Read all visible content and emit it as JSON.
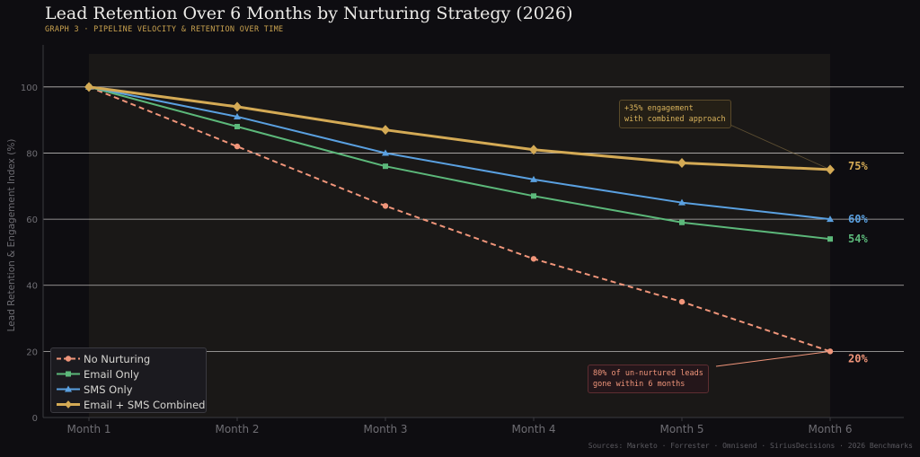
{
  "title": "Lead Retention Over 6 Months by Nurturing Strategy (2026)",
  "subtitle": "GRAPH 3  ·  PIPELINE VELOCITY & RETENTION OVER TIME",
  "sources": "Sources: Marketo · Forrester · Omnisend · SiriusDecisions · 2026 Benchmarks",
  "colors": {
    "background": "#0e0d11",
    "plot_area": "#1a1817",
    "grid": "#d8d6d3",
    "axis_text": "#6e6d73",
    "no_nurturing": "#f0957a",
    "email_only": "#5cb87a",
    "sms_only": "#5aa0e0",
    "combined": "#d4aa55"
  },
  "chart_data": {
    "type": "line",
    "title": "Lead Retention Over 6 Months by Nurturing Strategy (2026)",
    "ylabel": "Lead Retention & Engagement Index (%)",
    "xlabel": "",
    "categories": [
      "Month 1",
      "Month 2",
      "Month 3",
      "Month 4",
      "Month 5",
      "Month 6"
    ],
    "ylim": [
      0,
      110
    ],
    "yticks": [
      0,
      20,
      40,
      60,
      80,
      100
    ],
    "grid": true,
    "legend_position": "bottom-left",
    "series": [
      {
        "name": "No Nurturing",
        "values": [
          100,
          82,
          64,
          48,
          35,
          20
        ],
        "color": "#f0957a",
        "marker": "circle",
        "dash": true,
        "end_label": "20%",
        "width": 2
      },
      {
        "name": "Email Only",
        "values": [
          100,
          88,
          76,
          67,
          59,
          54
        ],
        "color": "#5cb87a",
        "marker": "square",
        "dash": false,
        "end_label": "54%",
        "width": 2
      },
      {
        "name": "SMS Only",
        "values": [
          100,
          91,
          80,
          72,
          65,
          60
        ],
        "color": "#5aa0e0",
        "marker": "triangle",
        "dash": false,
        "end_label": "60%",
        "width": 2
      },
      {
        "name": "Email + SMS Combined",
        "values": [
          100,
          94,
          87,
          81,
          77,
          75
        ],
        "color": "#d4aa55",
        "marker": "diamond",
        "dash": false,
        "end_label": "75%",
        "width": 3
      }
    ],
    "annotations": [
      {
        "text": "+35% engagement\nwith combined approach",
        "series": "Email + SMS Combined",
        "category": "Month 6"
      },
      {
        "text": "80% of un-nurtured leads\ngone within 6 months",
        "series": "No Nurturing",
        "category": "Month 6"
      }
    ]
  }
}
